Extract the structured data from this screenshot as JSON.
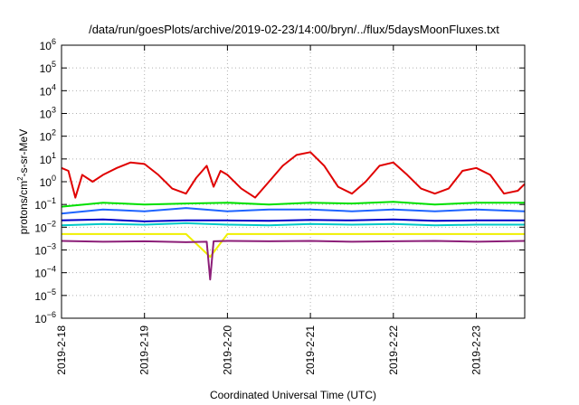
{
  "chart_data": {
    "type": "line",
    "title": "/data/run/goesPlots/archive/2019-02-23/14:00/bryn/../flux/5daysMoonFluxes.txt",
    "xlabel": "Coordinated Universal Time (UTC)",
    "ylabel": "protons/cm²-s-sr-MeV",
    "yscale": "log",
    "ylim": [
      1e-06,
      1000000.0
    ],
    "xlim": [
      "2019-02-18T00:00",
      "2019-02-23T14:00"
    ],
    "grid": true,
    "legend": "none",
    "x_ticks": [
      "2019-2-18",
      "2019-2-19",
      "2019-2-20",
      "2019-2-21",
      "2019-2-22",
      "2019-2-23"
    ],
    "y_tick_exponents": [
      -6,
      -5,
      -4,
      -3,
      -2,
      -1,
      0,
      1,
      2,
      3,
      4,
      5,
      6
    ],
    "series": [
      {
        "color": "#e00000",
        "x": [
          "2019-02-18T00:00",
          "2019-02-18T02:00",
          "2019-02-18T04:00",
          "2019-02-18T06:00",
          "2019-02-18T09:00",
          "2019-02-18T12:00",
          "2019-02-18T16:00",
          "2019-02-18T20:00",
          "2019-02-19T00:00",
          "2019-02-19T04:00",
          "2019-02-19T08:00",
          "2019-02-19T12:00",
          "2019-02-19T15:00",
          "2019-02-19T18:00",
          "2019-02-19T20:00",
          "2019-02-19T22:00",
          "2019-02-20T00:00",
          "2019-02-20T04:00",
          "2019-02-20T08:00",
          "2019-02-20T12:00",
          "2019-02-20T16:00",
          "2019-02-20T20:00",
          "2019-02-21T00:00",
          "2019-02-21T04:00",
          "2019-02-21T08:00",
          "2019-02-21T12:00",
          "2019-02-21T16:00",
          "2019-02-21T20:00",
          "2019-02-22T00:00",
          "2019-02-22T04:00",
          "2019-02-22T08:00",
          "2019-02-22T12:00",
          "2019-02-22T16:00",
          "2019-02-22T20:00",
          "2019-02-23T00:00",
          "2019-02-23T04:00",
          "2019-02-23T08:00",
          "2019-02-23T12:00",
          "2019-02-23T14:00"
        ],
        "y": [
          4.0,
          3.0,
          0.2,
          2.0,
          1.0,
          2.0,
          4.0,
          7.0,
          6.0,
          2.0,
          0.5,
          0.3,
          1.5,
          5.0,
          0.6,
          3.0,
          2.0,
          0.5,
          0.2,
          1.0,
          5.0,
          15.0,
          20.0,
          5.0,
          0.6,
          0.3,
          1.0,
          5.0,
          7.0,
          2.0,
          0.5,
          0.3,
          0.5,
          3.0,
          4.0,
          2.0,
          0.3,
          0.4,
          0.8
        ]
      },
      {
        "color": "#00e000",
        "x": [
          "2019-02-18T00:00",
          "2019-02-18T12:00",
          "2019-02-19T00:00",
          "2019-02-19T12:00",
          "2019-02-20T00:00",
          "2019-02-20T12:00",
          "2019-02-21T00:00",
          "2019-02-21T12:00",
          "2019-02-22T00:00",
          "2019-02-22T12:00",
          "2019-02-23T00:00",
          "2019-02-23T14:00"
        ],
        "y": [
          0.08,
          0.12,
          0.1,
          0.11,
          0.12,
          0.1,
          0.12,
          0.11,
          0.13,
          0.1,
          0.12,
          0.12
        ]
      },
      {
        "color": "#00c8c8",
        "x": [
          "2019-02-18T00:00",
          "2019-02-18T12:00",
          "2019-02-19T00:00",
          "2019-02-19T12:00",
          "2019-02-20T00:00",
          "2019-02-20T12:00",
          "2019-02-21T00:00",
          "2019-02-21T12:00",
          "2019-02-22T00:00",
          "2019-02-22T12:00",
          "2019-02-23T00:00",
          "2019-02-23T14:00"
        ],
        "y": [
          0.012,
          0.014,
          0.013,
          0.015,
          0.013,
          0.012,
          0.014,
          0.013,
          0.014,
          0.012,
          0.013,
          0.013
        ]
      },
      {
        "color": "#1e64ff",
        "x": [
          "2019-02-18T00:00",
          "2019-02-18T12:00",
          "2019-02-19T00:00",
          "2019-02-19T12:00",
          "2019-02-20T00:00",
          "2019-02-20T12:00",
          "2019-02-21T00:00",
          "2019-02-21T12:00",
          "2019-02-22T00:00",
          "2019-02-22T12:00",
          "2019-02-23T00:00",
          "2019-02-23T14:00"
        ],
        "y": [
          0.04,
          0.06,
          0.05,
          0.07,
          0.05,
          0.06,
          0.06,
          0.05,
          0.06,
          0.05,
          0.06,
          0.05
        ]
      },
      {
        "color": "#0000c8",
        "x": [
          "2019-02-18T00:00",
          "2019-02-18T12:00",
          "2019-02-19T00:00",
          "2019-02-19T12:00",
          "2019-02-20T00:00",
          "2019-02-20T12:00",
          "2019-02-21T00:00",
          "2019-02-21T12:00",
          "2019-02-22T00:00",
          "2019-02-22T12:00",
          "2019-02-23T00:00",
          "2019-02-23T14:00"
        ],
        "y": [
          0.02,
          0.022,
          0.018,
          0.02,
          0.02,
          0.019,
          0.021,
          0.02,
          0.022,
          0.019,
          0.02,
          0.02
        ]
      },
      {
        "color": "#f0f000",
        "x": [
          "2019-02-18T00:00",
          "2019-02-18T12:00",
          "2019-02-19T00:00",
          "2019-02-19T12:00",
          "2019-02-19T19:00",
          "2019-02-20T00:00",
          "2019-02-20T12:00",
          "2019-02-21T00:00",
          "2019-02-21T12:00",
          "2019-02-22T00:00",
          "2019-02-22T12:00",
          "2019-02-23T00:00",
          "2019-02-23T14:00"
        ],
        "y": [
          0.005,
          0.005,
          0.005,
          0.005,
          0.0005,
          0.005,
          0.005,
          0.005,
          0.005,
          0.005,
          0.005,
          0.005,
          0.005
        ]
      },
      {
        "color": "#8c1e78",
        "x": [
          "2019-02-18T00:00",
          "2019-02-18T12:00",
          "2019-02-19T00:00",
          "2019-02-19T12:00",
          "2019-02-19T18:00",
          "2019-02-19T19:00",
          "2019-02-19T20:00",
          "2019-02-20T00:00",
          "2019-02-20T12:00",
          "2019-02-21T00:00",
          "2019-02-21T12:00",
          "2019-02-22T00:00",
          "2019-02-22T12:00",
          "2019-02-23T00:00",
          "2019-02-23T14:00"
        ],
        "y": [
          0.0025,
          0.0023,
          0.0024,
          0.0022,
          0.0023,
          5e-05,
          0.0024,
          0.0025,
          0.0024,
          0.0025,
          0.0023,
          0.0024,
          0.0025,
          0.0023,
          0.0025
        ]
      }
    ]
  }
}
